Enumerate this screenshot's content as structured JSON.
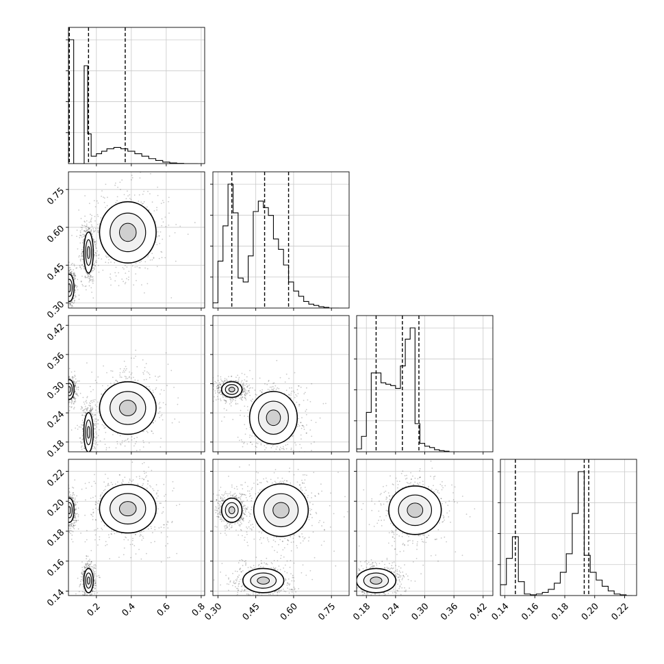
{
  "chart_data": {
    "type": "corner",
    "grid": true,
    "parameters": [
      {
        "index": 0,
        "range": [
          0.04,
          0.82
        ],
        "ticks": [
          "0.2",
          "0.4",
          "0.6",
          "0.8"
        ],
        "tick_values": [
          0.2,
          0.4,
          0.6,
          0.8
        ],
        "quantiles": [
          0.045,
          0.155,
          0.365
        ],
        "hist": [
          1.0,
          0.0,
          0.0,
          0.0,
          0.0,
          0.0,
          0.0,
          0.0,
          0.0,
          0.0,
          0.0,
          0.0,
          0.0,
          0.0,
          0.0
        ]
      },
      {
        "index": 1,
        "range": [
          0.28,
          0.82
        ],
        "ticks": [
          "0.30",
          "0.45",
          "0.60",
          "0.75"
        ],
        "tick_values": [
          0.3,
          0.45,
          0.6,
          0.75
        ],
        "quantiles": [
          0.355,
          0.485,
          0.58
        ],
        "hist": []
      },
      {
        "index": 2,
        "range": [
          0.16,
          0.44
        ],
        "ticks": [
          "0.18",
          "0.24",
          "0.30",
          "0.36",
          "0.42"
        ],
        "tick_values": [
          0.18,
          0.24,
          0.3,
          0.36,
          0.42
        ],
        "quantiles": [
          0.2,
          0.254,
          0.288
        ],
        "hist": []
      },
      {
        "index": 3,
        "range": [
          0.137,
          0.228
        ],
        "ticks": [
          "0.14",
          "0.16",
          "0.18",
          "0.20",
          "0.22"
        ],
        "tick_values": [
          0.14,
          0.16,
          0.18,
          0.2,
          0.22
        ],
        "quantiles": [
          0.147,
          0.193,
          0.196
        ],
        "hist": []
      }
    ],
    "histograms": [
      {
        "param": 0,
        "bin_edges": [
          0.04,
          0.07,
          0.09,
          0.11,
          0.13,
          0.15,
          0.17,
          0.2,
          0.23,
          0.26,
          0.3,
          0.34,
          0.38,
          0.42,
          0.46,
          0.5,
          0.54,
          0.58,
          0.62,
          0.66,
          0.7,
          0.74,
          0.78
        ],
        "counts": [
          1.0,
          0.0,
          0.0,
          0.0,
          0.79,
          0.24,
          0.06,
          0.08,
          0.1,
          0.12,
          0.13,
          0.12,
          0.1,
          0.08,
          0.06,
          0.04,
          0.025,
          0.012,
          0.005,
          0.002,
          0.0,
          0.0
        ]
      },
      {
        "param": 1,
        "bin_edges": [
          0.28,
          0.3,
          0.32,
          0.34,
          0.36,
          0.38,
          0.4,
          0.42,
          0.44,
          0.46,
          0.48,
          0.5,
          0.52,
          0.54,
          0.56,
          0.58,
          0.6,
          0.62,
          0.64,
          0.66,
          0.68,
          0.7,
          0.72,
          0.74,
          0.76,
          0.78
        ],
        "counts": [
          0.04,
          0.36,
          0.63,
          0.95,
          0.73,
          0.23,
          0.2,
          0.4,
          0.74,
          0.82,
          0.77,
          0.71,
          0.53,
          0.45,
          0.33,
          0.2,
          0.13,
          0.09,
          0.05,
          0.03,
          0.02,
          0.01,
          0.005,
          0.0,
          0.0
        ]
      },
      {
        "param": 2,
        "bin_edges": [
          0.16,
          0.17,
          0.18,
          0.19,
          0.2,
          0.21,
          0.22,
          0.23,
          0.24,
          0.25,
          0.26,
          0.27,
          0.28,
          0.29,
          0.3,
          0.31,
          0.32,
          0.33,
          0.34,
          0.35,
          0.36,
          0.37
        ],
        "counts": [
          0.02,
          0.11,
          0.28,
          0.56,
          0.56,
          0.49,
          0.48,
          0.47,
          0.45,
          0.61,
          0.8,
          0.88,
          0.2,
          0.06,
          0.04,
          0.03,
          0.015,
          0.008,
          0.004,
          0.0,
          0.0
        ]
      },
      {
        "param": 3,
        "bin_edges": [
          0.137,
          0.141,
          0.145,
          0.149,
          0.153,
          0.157,
          0.161,
          0.165,
          0.169,
          0.173,
          0.177,
          0.181,
          0.185,
          0.189,
          0.193,
          0.197,
          0.201,
          0.205,
          0.209,
          0.213,
          0.217,
          0.221,
          0.225
        ],
        "counts": [
          0.07,
          0.24,
          0.38,
          0.09,
          0.01,
          0.005,
          0.01,
          0.02,
          0.04,
          0.08,
          0.15,
          0.27,
          0.53,
          0.8,
          0.26,
          0.15,
          0.1,
          0.06,
          0.03,
          0.01,
          0.005,
          0.0
        ]
      }
    ],
    "pairs": [
      {
        "x_param": 0,
        "y_param": 1,
        "clusters": [
          {
            "cx": 0.045,
            "cy": 0.36,
            "sx": 0.02,
            "sy": 0.04,
            "n": 1
          },
          {
            "cx": 0.155,
            "cy": 0.5,
            "sx": 0.02,
            "sy": 0.06,
            "n": 1
          },
          {
            "cx": 0.38,
            "cy": 0.58,
            "sx": 0.12,
            "sy": 0.09,
            "n": 1
          }
        ]
      },
      {
        "x_param": 0,
        "y_param": 2,
        "clusters": [
          {
            "cx": 0.045,
            "cy": 0.288,
            "sx": 0.02,
            "sy": 0.015,
            "n": 1
          },
          {
            "cx": 0.155,
            "cy": 0.2,
            "sx": 0.02,
            "sy": 0.03,
            "n": 1
          },
          {
            "cx": 0.38,
            "cy": 0.25,
            "sx": 0.12,
            "sy": 0.04,
            "n": 1
          }
        ]
      },
      {
        "x_param": 0,
        "y_param": 3,
        "clusters": [
          {
            "cx": 0.045,
            "cy": 0.194,
            "sx": 0.02,
            "sy": 0.006,
            "n": 1
          },
          {
            "cx": 0.155,
            "cy": 0.147,
            "sx": 0.02,
            "sy": 0.006,
            "n": 1
          },
          {
            "cx": 0.38,
            "cy": 0.195,
            "sx": 0.12,
            "sy": 0.012,
            "n": 1
          }
        ]
      },
      {
        "x_param": 1,
        "y_param": 2,
        "clusters": [
          {
            "cx": 0.355,
            "cy": 0.288,
            "sx": 0.03,
            "sy": 0.012,
            "n": 1
          },
          {
            "cx": 0.52,
            "cy": 0.23,
            "sx": 0.07,
            "sy": 0.04,
            "n": 1
          }
        ]
      },
      {
        "x_param": 1,
        "y_param": 3,
        "clusters": [
          {
            "cx": 0.355,
            "cy": 0.194,
            "sx": 0.03,
            "sy": 0.006,
            "n": 1
          },
          {
            "cx": 0.55,
            "cy": 0.194,
            "sx": 0.08,
            "sy": 0.013,
            "n": 1
          },
          {
            "cx": 0.48,
            "cy": 0.147,
            "sx": 0.06,
            "sy": 0.006,
            "n": 1
          }
        ]
      },
      {
        "x_param": 2,
        "y_param": 3,
        "clusters": [
          {
            "cx": 0.28,
            "cy": 0.194,
            "sx": 0.04,
            "sy": 0.012,
            "n": 1
          },
          {
            "cx": 0.2,
            "cy": 0.147,
            "sx": 0.03,
            "sy": 0.006,
            "n": 1
          }
        ]
      }
    ]
  }
}
